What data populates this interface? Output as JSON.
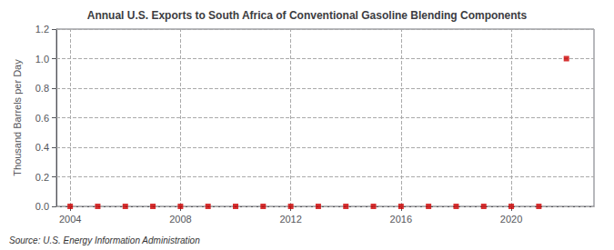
{
  "chart_data": {
    "type": "scatter",
    "title": "Annual U.S. Exports to South Africa of Conventional Gasoline Blending Components",
    "ylabel": "Thousand Barrels per Day",
    "annotation": "Source: U.S. Energy Information Administration",
    "x": [
      2004,
      2005,
      2006,
      2007,
      2008,
      2009,
      2010,
      2011,
      2012,
      2013,
      2014,
      2015,
      2016,
      2017,
      2018,
      2019,
      2020,
      2021,
      2022
    ],
    "values": [
      0.0,
      0.0,
      0.0,
      0.0,
      0.0,
      0.0,
      0.0,
      0.0,
      0.0,
      0.0,
      0.0,
      0.0,
      0.0,
      0.0,
      0.0,
      0.0,
      0.0,
      0.0,
      1.0
    ],
    "color": "#cc0000",
    "marker": "square",
    "xlim": [
      2003.5,
      2023.0
    ],
    "xticks": [
      2004,
      2008,
      2012,
      2016,
      2020
    ],
    "ylim": [
      0,
      1.2
    ],
    "yticks": [
      {
        "value": 0,
        "label": "0.0"
      },
      0.2,
      0.4,
      0.6,
      0.8,
      {
        "value": 1,
        "label": "1.0"
      },
      1.2
    ],
    "grid": true
  }
}
